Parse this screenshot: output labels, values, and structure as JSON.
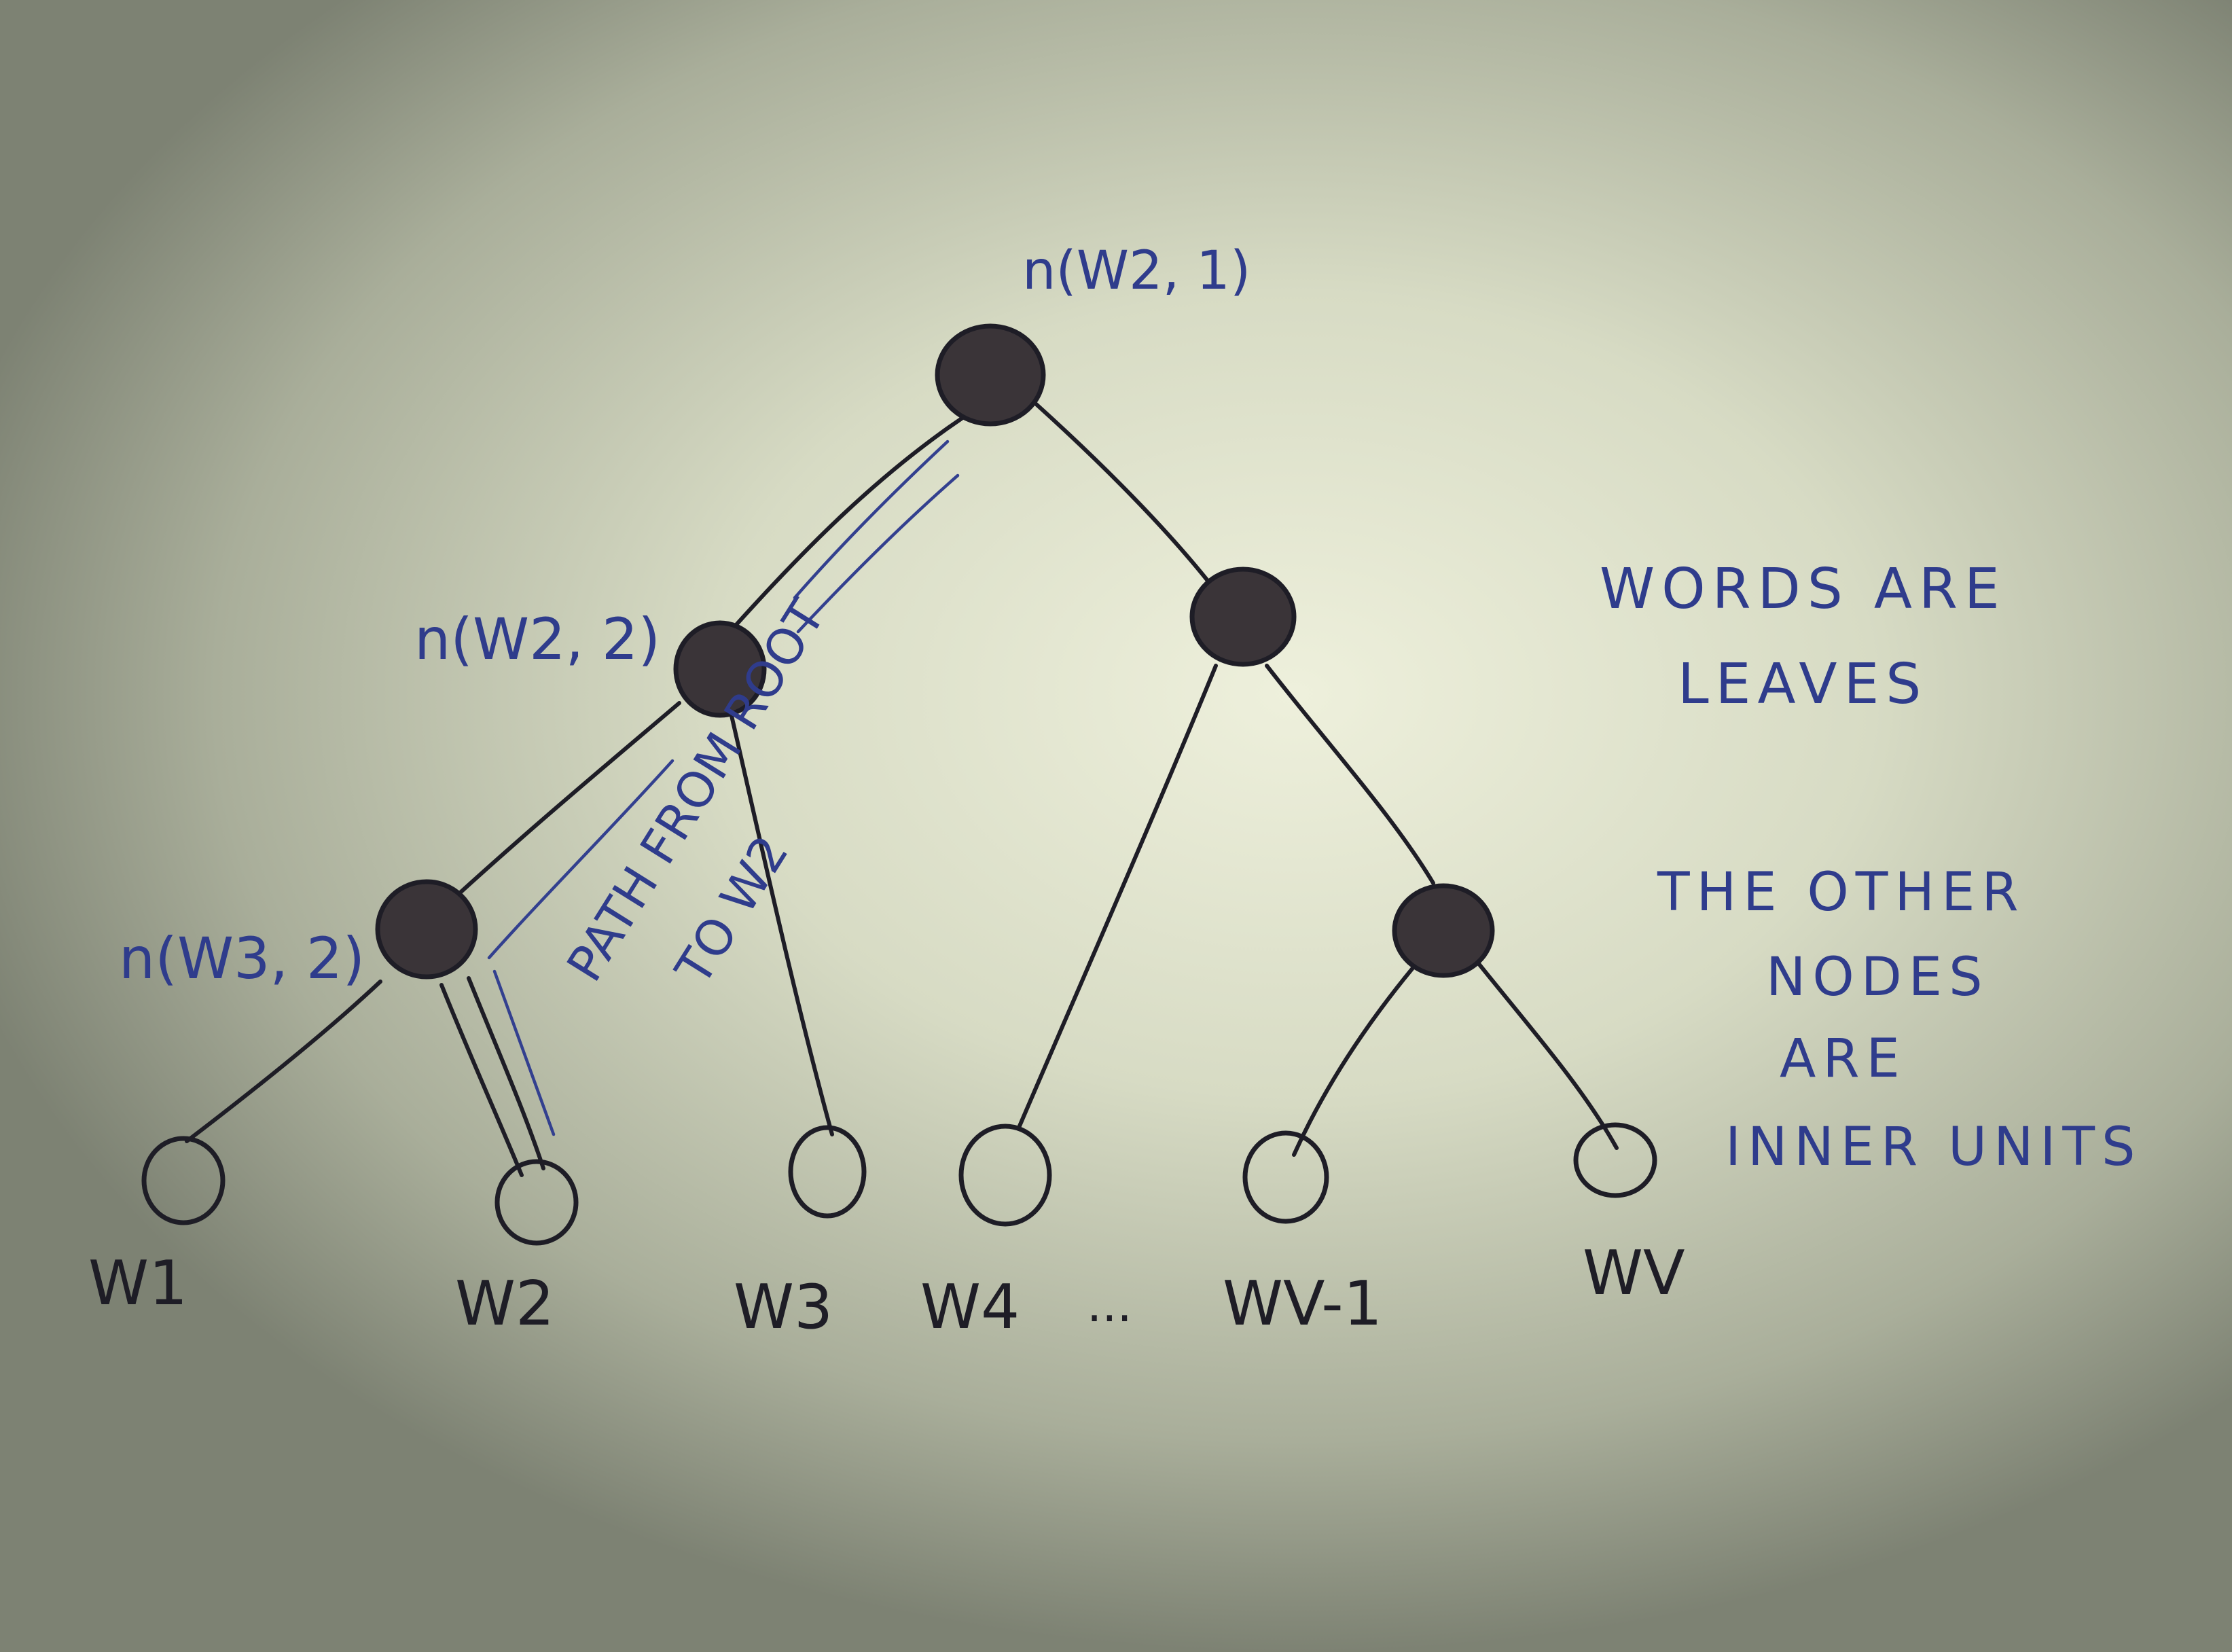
{
  "diagram": {
    "root_label": "n(W2, 1)",
    "inner_labels": {
      "n_w2_2": "n(W2, 2)",
      "n_w3_2": "n(W3, 2)"
    },
    "leaves": {
      "w1": "W1",
      "w2": "W2",
      "w3": "W3",
      "w4": "W4",
      "ellipsis": "...",
      "wv_minus_1": "WV-1",
      "wv": "WV"
    },
    "path_annotation": {
      "line1": "PATH FROM ROOT",
      "line2": "TO W2"
    },
    "notes": {
      "note1_line1": "WORDS ARE",
      "note1_line2": "LEAVES",
      "note2_line1": "THE OTHER",
      "note2_line2": "NODES",
      "note2_line3": "ARE",
      "note2_line4": "INNER UNITS"
    },
    "colors": {
      "ink_black": "#1e1d26",
      "ink_blue": "#33408f",
      "node_fill": "#3a3438"
    }
  }
}
